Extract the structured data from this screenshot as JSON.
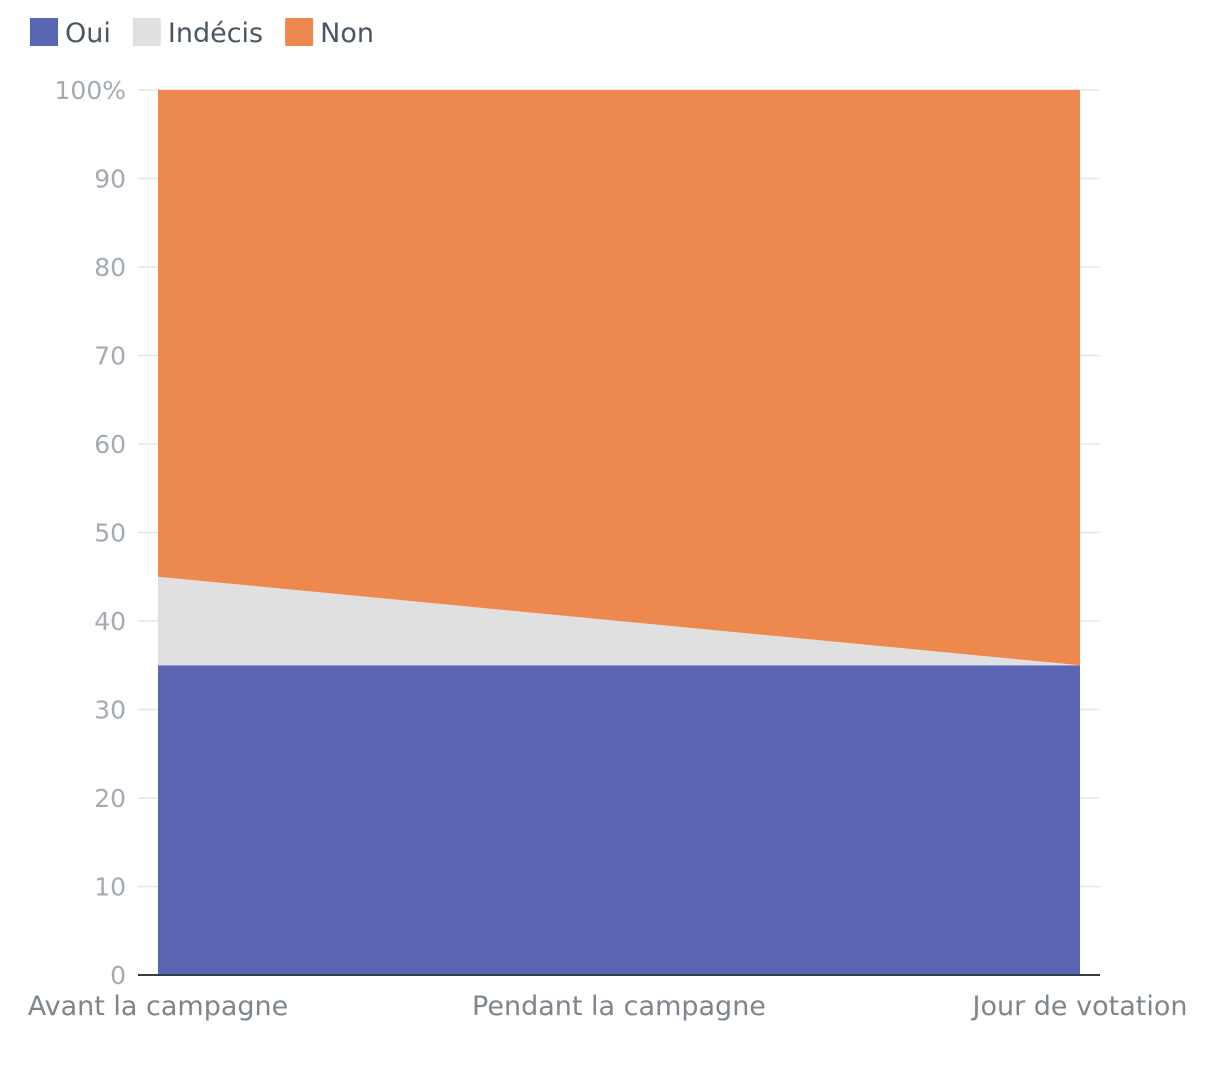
{
  "chart_data": {
    "type": "area",
    "stacked": true,
    "categories": [
      "Avant la campagne",
      "Pendant la campagne",
      "Jour de votation"
    ],
    "series": [
      {
        "name": "Oui",
        "color": "#5a65b3",
        "values": [
          35,
          35,
          35
        ]
      },
      {
        "name": "Indécis",
        "color": "#e0e0e0",
        "values": [
          10,
          5,
          0
        ]
      },
      {
        "name": "Non",
        "color": "#ed894f",
        "values": [
          55,
          60,
          65
        ]
      }
    ],
    "ylim": [
      0,
      100
    ],
    "yticks": [
      0,
      10,
      20,
      30,
      40,
      50,
      60,
      70,
      80,
      90,
      100
    ],
    "ytick_labels": [
      "0",
      "10",
      "20",
      "30",
      "40",
      "50",
      "60",
      "70",
      "80",
      "90",
      "100%"
    ],
    "grid": true,
    "legend_position": "top-left",
    "title": "",
    "xlabel": "",
    "ylabel": ""
  }
}
